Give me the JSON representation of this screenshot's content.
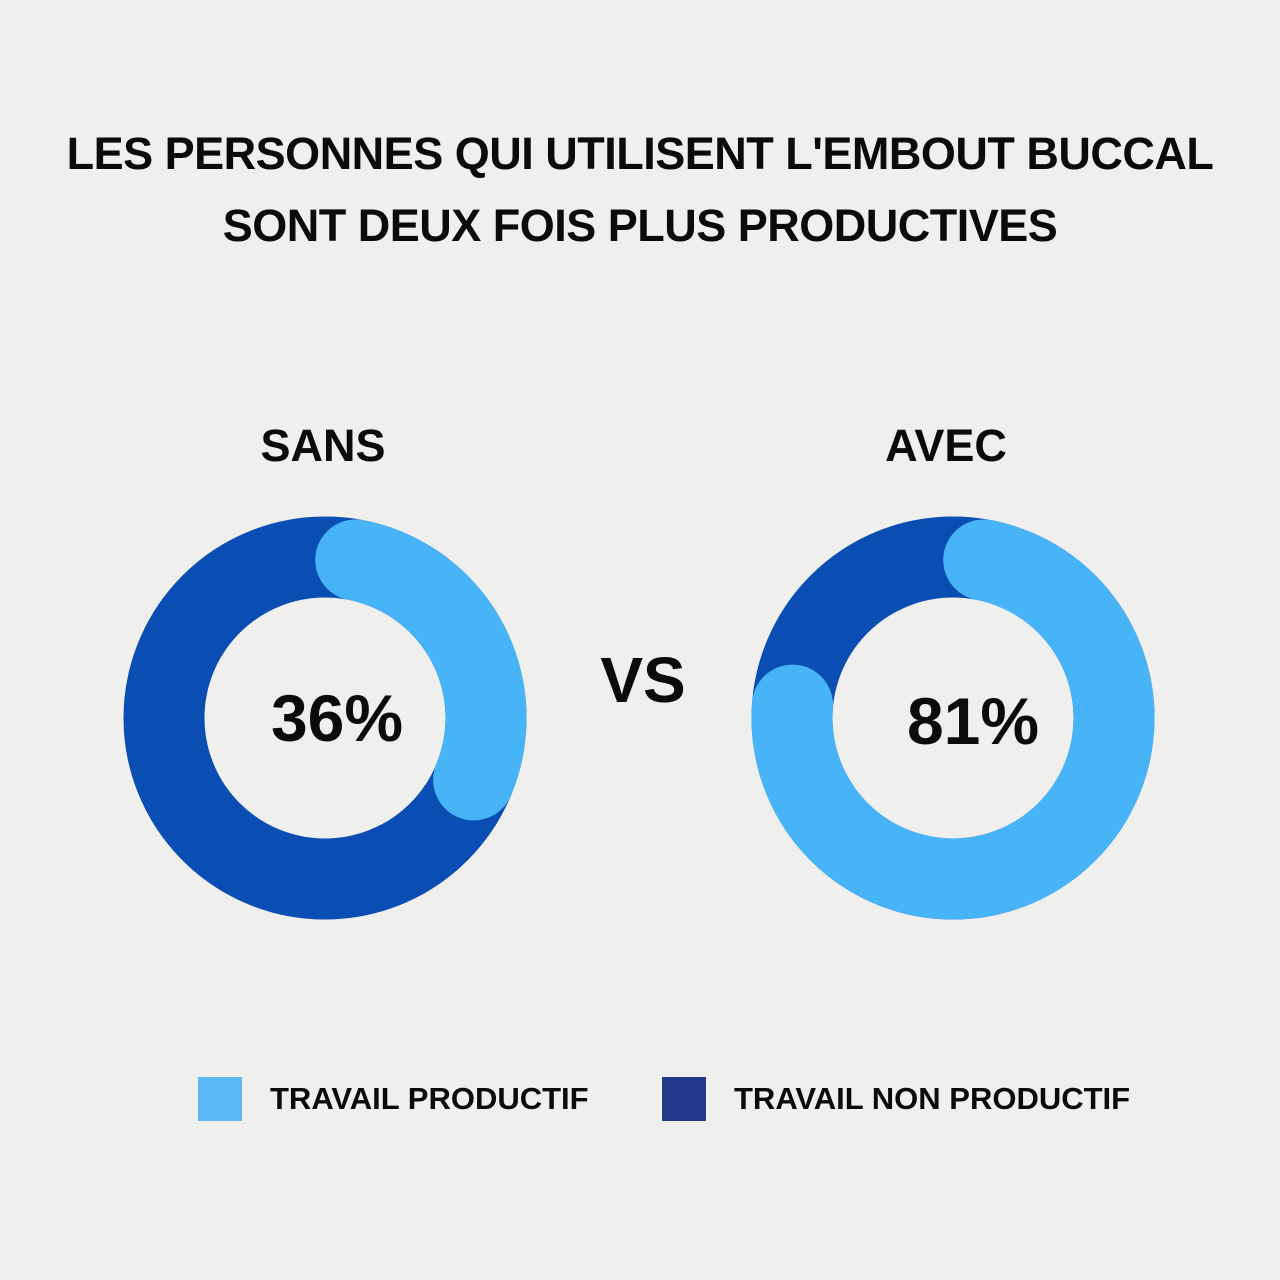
{
  "chart_data": [
    {
      "type": "pie",
      "variant": "donut",
      "title": "LES PERSONNES QUI UTILISENT L'EMBOUT BUCCAL SONT DEUX FOIS PLUS PRODUCTIVES",
      "label": "SANS",
      "center_label": "36%",
      "slices": [
        {
          "name": "TRAVAIL PRODUCTIF",
          "value": 36
        },
        {
          "name": "TRAVAIL NON PRODUCTIF",
          "value": 64
        }
      ]
    },
    {
      "type": "pie",
      "variant": "donut",
      "label": "AVEC",
      "center_label": "81%",
      "slices": [
        {
          "name": "TRAVAIL PRODUCTIF",
          "value": 81
        },
        {
          "name": "TRAVAIL NON PRODUCTIF",
          "value": 19
        }
      ]
    }
  ],
  "title_line1": "LES PERSONNES QUI UTILISENT L'EMBOUT BUCCAL",
  "title_line2": "SONT DEUX FOIS PLUS PRODUCTIVES",
  "vs": "VS",
  "legend": [
    {
      "label": "TRAVAIL PRODUCTIF",
      "color": "#5ab8f5"
    },
    {
      "label": "TRAVAIL NON PRODUCTIF",
      "color": "#22398a"
    }
  ],
  "colors": {
    "productive": "#48b4f8",
    "non_productive": "#0a4db3"
  }
}
